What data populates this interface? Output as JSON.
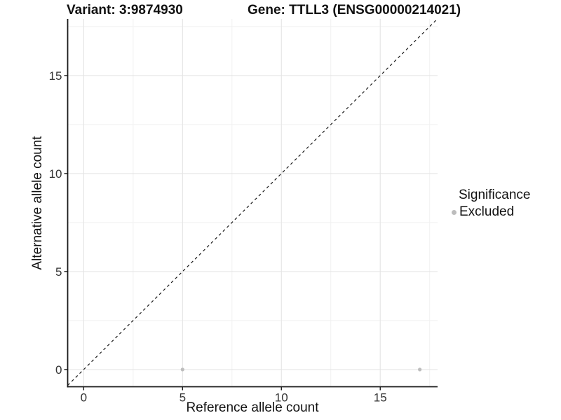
{
  "chart_data": {
    "type": "scatter",
    "title_variant": "Variant: 3:9874930",
    "title_gene": "Gene: TTLL3 (ENSG00000214021)",
    "xlabel": "Reference allele count",
    "ylabel": "Alternative allele count",
    "xlim": [
      -0.81,
      17.9
    ],
    "ylim": [
      -0.88,
      17.89
    ],
    "xticks": [
      0,
      5,
      10,
      15
    ],
    "yticks": [
      0,
      5,
      10,
      15
    ],
    "xminor": [
      2.5,
      7.5,
      12.5,
      17.5
    ],
    "yminor": [
      2.5,
      7.5,
      12.5,
      17.5
    ],
    "grid": true,
    "identity_line": {
      "type": "dashed",
      "color": "#1a1a1a",
      "equation": "y = x"
    },
    "series": [
      {
        "name": "Excluded",
        "color": "#bdbdbd",
        "points": [
          {
            "x": 5,
            "y": 0
          },
          {
            "x": 17,
            "y": 0
          }
        ]
      }
    ],
    "legend": {
      "position": "right",
      "title": "Significance",
      "items": [
        {
          "label": "Excluded",
          "color": "#bdbdbd"
        }
      ]
    },
    "style": {
      "background": "#ffffff",
      "grid_major_color": "#e4e4e4",
      "grid_minor_color": "#f1f1f1",
      "axis_color": "#1a1a1a",
      "tick_label_color": "#333333"
    }
  }
}
